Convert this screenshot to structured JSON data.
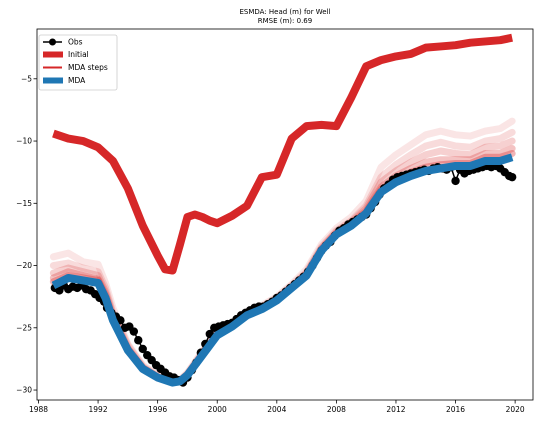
{
  "chart_data": {
    "type": "line",
    "title": "ESMDA: Head (m) for Well",
    "subtitle": "RMSE (m): 0.69",
    "xlabel": "",
    "ylabel": "",
    "xlim": [
      1987.9,
      2021.2
    ],
    "ylim": [
      -30.8,
      -1.0
    ],
    "xticks": [
      1988,
      1992,
      1996,
      2000,
      2004,
      2008,
      2012,
      2016,
      2020
    ],
    "yticks": [
      -30,
      -25,
      -20,
      -15,
      -10,
      -5
    ],
    "grid": false,
    "legend": {
      "placement": "top-left",
      "entries": [
        "Obs",
        "Initial",
        "MDA steps",
        "MDA"
      ]
    },
    "colors": {
      "obs": "#000000",
      "initial": "#d62728",
      "mda_steps": "#d62728",
      "mda": "#1f77b4"
    },
    "series": [
      {
        "name": "Initial",
        "x": [
          1989.0,
          1990.0,
          1991.0,
          1992.0,
          1993.0,
          1994.0,
          1995.0,
          1996.0,
          1996.5,
          1997.0,
          1997.5,
          1998.0,
          1998.5,
          1999.0,
          1999.5,
          2000.0,
          2001.0,
          2002.0,
          2003.0,
          2004.0,
          2005.0,
          2006.0,
          2007.0,
          2008.0,
          2009.0,
          2010.0,
          2011.0,
          2012.0,
          2013.0,
          2014.0,
          2015.0,
          2016.0,
          2017.0,
          2018.0,
          2019.0,
          2019.8
        ],
        "values": [
          -9.4,
          -9.8,
          -10.0,
          -10.5,
          -11.6,
          -13.8,
          -16.8,
          -19.2,
          -20.3,
          -20.4,
          -18.3,
          -16.1,
          -15.9,
          -16.1,
          -16.4,
          -16.6,
          -16.0,
          -15.2,
          -12.9,
          -12.7,
          -9.8,
          -8.8,
          -8.7,
          -8.8,
          -6.5,
          -4.0,
          -3.5,
          -3.2,
          -3.0,
          -2.5,
          -2.4,
          -2.3,
          -2.1,
          -2.0,
          -1.9,
          -1.7
        ]
      },
      {
        "name": "MDA",
        "x": [
          1989.0,
          1990.0,
          1991.0,
          1992.0,
          1992.5,
          1993.0,
          1994.0,
          1995.0,
          1996.0,
          1997.0,
          1997.5,
          1998.0,
          1999.0,
          2000.0,
          2001.0,
          2002.0,
          2003.0,
          2004.0,
          2005.0,
          2006.0,
          2007.0,
          2008.0,
          2009.0,
          2010.0,
          2011.0,
          2012.0,
          2013.0,
          2014.0,
          2015.0,
          2016.0,
          2017.0,
          2018.0,
          2019.0,
          2019.8
        ],
        "values": [
          -21.6,
          -21.0,
          -21.2,
          -21.4,
          -22.6,
          -24.4,
          -26.8,
          -28.3,
          -29.0,
          -29.4,
          -29.3,
          -28.8,
          -27.2,
          -25.6,
          -24.9,
          -24.0,
          -23.5,
          -22.8,
          -21.8,
          -20.8,
          -18.8,
          -17.5,
          -16.8,
          -15.8,
          -14.1,
          -13.3,
          -12.8,
          -12.4,
          -12.2,
          -12.0,
          -12.0,
          -11.6,
          -11.6,
          -11.3
        ]
      }
    ],
    "mda_steps": [
      {
        "opacity": 0.12,
        "offsets": [
          2.3,
          2.0,
          1.5,
          1.5,
          1.2,
          1.0,
          0.5,
          0.3,
          0.2,
          0.1,
          0.1,
          0.2,
          0.3,
          0.3,
          0.3,
          0.3,
          0.3,
          0.3,
          0.3,
          0.5,
          0.5,
          0.5,
          0.7,
          1.0,
          2.0,
          2.2,
          2.5,
          2.9,
          3.0,
          2.5,
          2.4,
          2.4,
          2.6,
          2.9
        ]
      },
      {
        "opacity": 0.17,
        "offsets": [
          1.6,
          1.2,
          1.0,
          0.9,
          0.8,
          0.6,
          0.4,
          0.2,
          0.1,
          0.1,
          0.1,
          0.1,
          0.2,
          0.2,
          0.2,
          0.2,
          0.2,
          0.2,
          0.2,
          0.3,
          0.3,
          0.3,
          0.4,
          0.6,
          1.2,
          1.4,
          1.7,
          2.0,
          2.1,
          1.6,
          1.5,
          1.6,
          1.8,
          2.0
        ]
      },
      {
        "opacity": 0.22,
        "offsets": [
          1.0,
          0.8,
          0.7,
          0.6,
          0.5,
          0.4,
          0.2,
          0.1,
          0.1,
          0.0,
          0.0,
          0.1,
          0.1,
          0.1,
          0.1,
          0.1,
          0.1,
          0.1,
          0.1,
          0.2,
          0.2,
          0.2,
          0.3,
          0.4,
          0.8,
          0.9,
          1.1,
          1.3,
          1.4,
          1.0,
          0.9,
          1.1,
          1.2,
          1.3
        ]
      },
      {
        "opacity": 0.28,
        "offsets": [
          0.6,
          0.5,
          0.4,
          0.3,
          0.3,
          0.2,
          0.1,
          0.1,
          0.0,
          0.0,
          0.0,
          0.0,
          0.1,
          0.1,
          0.1,
          0.1,
          0.1,
          0.1,
          0.1,
          0.1,
          0.1,
          0.1,
          0.2,
          0.2,
          0.4,
          0.5,
          0.6,
          0.7,
          0.7,
          0.5,
          0.5,
          0.6,
          0.6,
          0.7
        ]
      },
      {
        "opacity": 0.34,
        "offsets": [
          0.3,
          0.2,
          0.2,
          0.2,
          0.1,
          0.1,
          0.1,
          0.0,
          0.0,
          0.0,
          0.0,
          0.0,
          0.0,
          0.0,
          0.0,
          0.0,
          0.0,
          0.0,
          0.0,
          0.1,
          0.1,
          0.1,
          0.1,
          0.1,
          0.2,
          0.2,
          0.3,
          0.3,
          0.3,
          0.2,
          0.2,
          0.3,
          0.3,
          0.3
        ]
      }
    ],
    "obs": {
      "x": [
        1989.1,
        1989.4,
        1989.7,
        1990.0,
        1990.3,
        1990.6,
        1990.9,
        1991.2,
        1991.5,
        1991.8,
        1992.1,
        1992.4,
        1992.6,
        1992.9,
        1993.2,
        1993.5,
        1993.8,
        1994.1,
        1994.4,
        1994.7,
        1995.0,
        1995.3,
        1995.6,
        1995.9,
        1996.2,
        1996.5,
        1996.8,
        1997.1,
        1997.4,
        1997.7,
        1998.0,
        1998.3,
        1998.6,
        1998.9,
        1999.2,
        1999.5,
        1999.8,
        2000.1,
        2000.4,
        2000.7,
        2001.0,
        2001.3,
        2001.6,
        2001.9,
        2002.2,
        2002.5,
        2002.8,
        2003.1,
        2003.4,
        2003.7,
        2004.0,
        2004.3,
        2004.6,
        2004.9,
        2005.2,
        2005.5,
        2005.8,
        2006.1,
        2006.4,
        2006.7,
        2007.0,
        2007.3,
        2007.6,
        2007.9,
        2008.2,
        2008.5,
        2008.8,
        2009.1,
        2009.4,
        2009.7,
        2010.0,
        2010.3,
        2010.6,
        2010.9,
        2011.2,
        2011.5,
        2011.8,
        2012.1,
        2012.4,
        2012.7,
        2013.0,
        2013.3,
        2013.6,
        2013.9,
        2014.2,
        2014.5,
        2014.8,
        2015.1,
        2015.4,
        2015.7,
        2016.0,
        2016.3,
        2016.6,
        2016.9,
        2017.2,
        2017.5,
        2017.8,
        2018.1,
        2018.4,
        2018.7,
        2019.0,
        2019.3,
        2019.6,
        2019.8
      ],
      "values": [
        -21.8,
        -22.0,
        -21.6,
        -21.9,
        -21.7,
        -21.8,
        -21.6,
        -21.9,
        -22.0,
        -22.3,
        -22.6,
        -22.9,
        -23.4,
        -23.8,
        -24.1,
        -24.4,
        -25.0,
        -24.9,
        -25.3,
        -26.0,
        -26.7,
        -27.2,
        -27.6,
        -28.0,
        -28.3,
        -28.6,
        -28.9,
        -29.0,
        -29.2,
        -29.4,
        -29.0,
        -28.4,
        -27.8,
        -27.0,
        -26.3,
        -25.5,
        -25.0,
        -24.9,
        -24.8,
        -24.7,
        -24.6,
        -24.3,
        -24.0,
        -23.8,
        -23.6,
        -23.4,
        -23.3,
        -23.3,
        -23.1,
        -22.9,
        -22.6,
        -22.4,
        -22.1,
        -21.8,
        -21.5,
        -21.2,
        -20.9,
        -20.5,
        -20.0,
        -19.4,
        -18.8,
        -18.4,
        -18.1,
        -17.6,
        -17.2,
        -17.0,
        -16.7,
        -16.5,
        -16.3,
        -16.1,
        -15.9,
        -15.4,
        -14.9,
        -14.3,
        -13.8,
        -13.5,
        -13.1,
        -12.9,
        -12.8,
        -12.7,
        -12.6,
        -12.5,
        -12.4,
        -12.3,
        -12.4,
        -12.2,
        -12.1,
        -12.2,
        -12.3,
        -12.1,
        -13.2,
        -12.3,
        -12.6,
        -12.4,
        -12.3,
        -12.2,
        -12.1,
        -12.0,
        -12.1,
        -12.0,
        -12.2,
        -12.5,
        -12.8,
        -12.9
      ]
    }
  }
}
